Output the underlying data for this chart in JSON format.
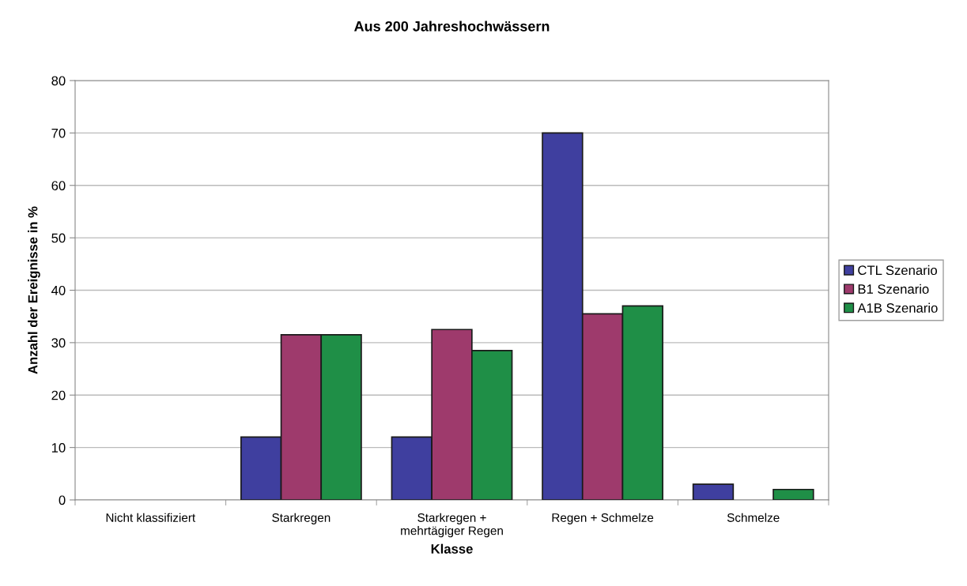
{
  "chart_data": {
    "type": "bar",
    "title": "Aus 200 Jahreshochwässern",
    "xlabel": "Klasse",
    "ylabel": "Anzahl der Ereignisse in %",
    "categories": [
      "Nicht klassifiziert",
      "Starkregen",
      "Starkregen +\nmehrtägiger Regen",
      "Regen + Schmelze",
      "Schmelze"
    ],
    "series": [
      {
        "name": "CTL Szenario",
        "color": "#3f3f9f",
        "values": [
          0,
          12,
          12,
          70,
          3
        ]
      },
      {
        "name": "B1 Szenario",
        "color": "#9e3a6c",
        "values": [
          0,
          31.5,
          32.5,
          35.5,
          0
        ]
      },
      {
        "name": "A1B Szenario",
        "color": "#1f8f47",
        "values": [
          0,
          31.5,
          28.5,
          37,
          2
        ]
      }
    ],
    "ylim": [
      0,
      80
    ],
    "yticks": [
      0,
      10,
      20,
      30,
      40,
      50,
      60,
      70,
      80
    ],
    "grid": "y",
    "legend": "right"
  }
}
